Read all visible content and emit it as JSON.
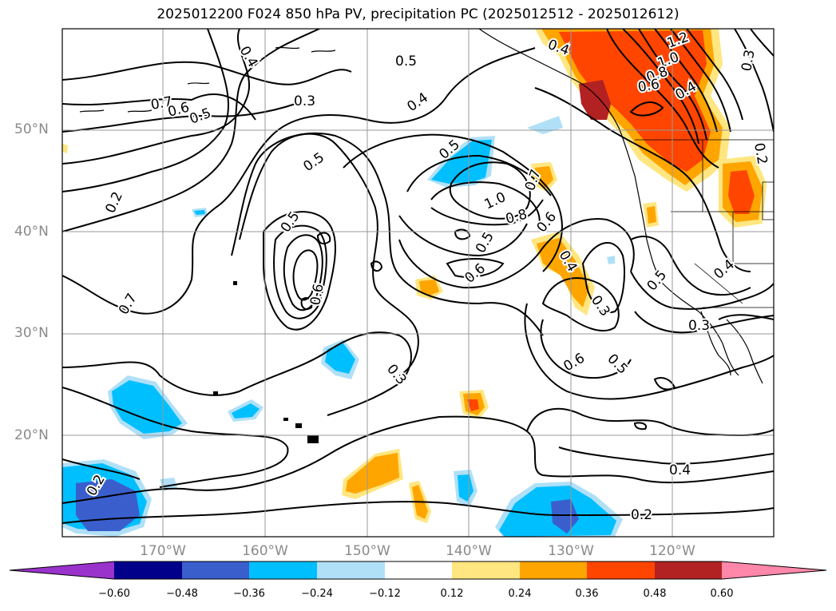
{
  "title": "2025012200 F024 850 hPa PV, precipitation PC (2025012512 - 2025012612)",
  "lat_labels": [
    "50°N",
    "40°N",
    "30°N",
    "20°N"
  ],
  "lon_labels": [
    "170°W",
    "160°W",
    "150°W",
    "140°W",
    "130°W",
    "120°W"
  ],
  "contour_labels": [
    "0.4",
    "0.5",
    "0.3",
    "0.5",
    "0.4",
    "0.7",
    "0.6",
    "0.5",
    "0.2",
    "0.5",
    "1.0",
    "0.8",
    "0.5",
    "0.6",
    "0.7",
    "0.6",
    "0.5",
    "0.6",
    "0.7",
    "0.3",
    "0.4",
    "0.3",
    "0.6",
    "0.5",
    "0.3",
    "0.2",
    "0.4",
    "0.2",
    "1.2",
    "1.0",
    "0.8",
    "0.6",
    "0.4",
    "0.3",
    "0.2",
    "0.5",
    "0.4"
  ],
  "colorbar": {
    "ticks": [
      "−0.60",
      "−0.48",
      "−0.36",
      "−0.24",
      "−0.12",
      "0.12",
      "0.24",
      "0.36",
      "0.48",
      "0.60"
    ],
    "colors": [
      "#9933cc",
      "#00008b",
      "#3a5fcd",
      "#00bfff",
      "#b0e0f8",
      "#ffffff",
      "#ffe680",
      "#ffa500",
      "#ff4500",
      "#b22222",
      "#ff88aa"
    ]
  }
}
